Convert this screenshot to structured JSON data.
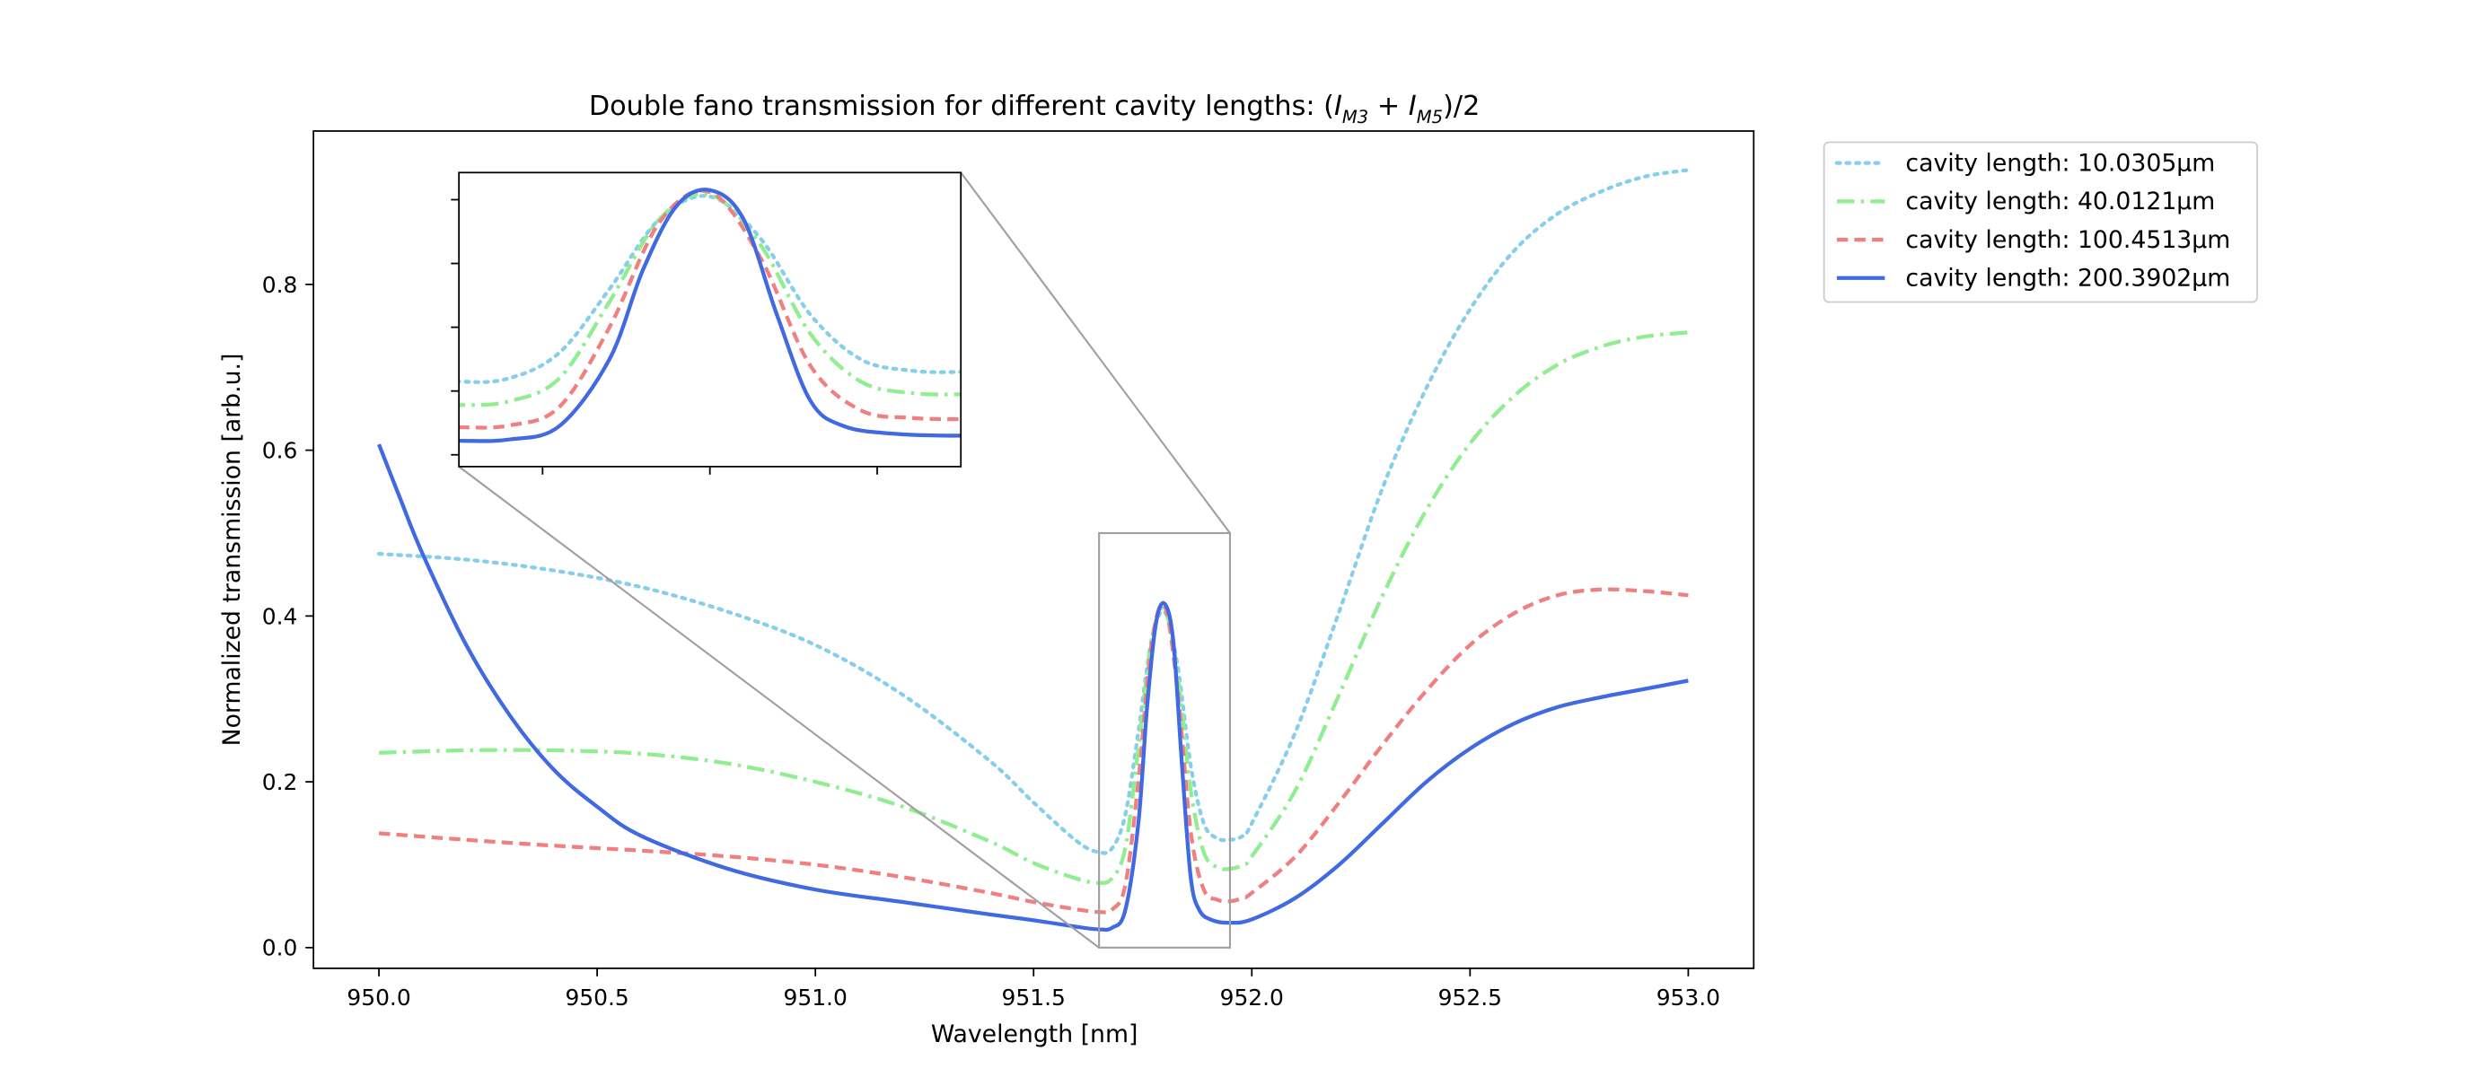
{
  "chart_data": {
    "type": "line",
    "title_main": "Double fano transmission for different cavity lengths:  (",
    "title_parts": {
      "I": "I",
      "M3": "M3",
      "plus": " + ",
      "M5": "M5",
      "tail": ")/2"
    },
    "xlabel": "Wavelength [nm]",
    "ylabel": "Normalized transmission [arb.u.]",
    "xlim": [
      949.85,
      953.15
    ],
    "ylim": [
      -0.025,
      0.985
    ],
    "xticks": [
      950.0,
      950.5,
      951.0,
      951.5,
      952.0,
      952.5,
      953.0
    ],
    "xtick_labels": [
      "950.0",
      "950.5",
      "951.0",
      "951.5",
      "952.0",
      "952.5",
      "953.0"
    ],
    "yticks": [
      0.0,
      0.2,
      0.4,
      0.6,
      0.8
    ],
    "ytick_labels": [
      "0.0",
      "0.2",
      "0.4",
      "0.6",
      "0.8"
    ],
    "legend_position": "outside upper right",
    "series": [
      {
        "name": "cavity length: 10.0305µm",
        "color": "#87CEEB",
        "dash": "dotted",
        "points": [
          [
            950.0,
            0.475
          ],
          [
            950.2,
            0.468
          ],
          [
            950.4,
            0.455
          ],
          [
            950.6,
            0.435
          ],
          [
            950.8,
            0.405
          ],
          [
            951.0,
            0.365
          ],
          [
            951.2,
            0.305
          ],
          [
            951.4,
            0.225
          ],
          [
            951.5,
            0.175
          ],
          [
            951.6,
            0.128
          ],
          [
            951.65,
            0.115
          ],
          [
            951.68,
            0.12
          ],
          [
            951.71,
            0.16
          ],
          [
            951.74,
            0.26
          ],
          [
            951.77,
            0.37
          ],
          [
            951.8,
            0.405
          ],
          [
            951.83,
            0.34
          ],
          [
            951.86,
            0.22
          ],
          [
            951.89,
            0.15
          ],
          [
            951.92,
            0.132
          ],
          [
            951.95,
            0.13
          ],
          [
            951.98,
            0.135
          ],
          [
            952.0,
            0.15
          ],
          [
            952.1,
            0.26
          ],
          [
            952.2,
            0.405
          ],
          [
            952.3,
            0.555
          ],
          [
            952.4,
            0.675
          ],
          [
            952.5,
            0.77
          ],
          [
            952.6,
            0.84
          ],
          [
            952.7,
            0.885
          ],
          [
            952.8,
            0.912
          ],
          [
            952.9,
            0.93
          ],
          [
            953.0,
            0.938
          ]
        ]
      },
      {
        "name": "cavity length: 40.0121µm",
        "color": "#90EE90",
        "dash": "dashdot",
        "points": [
          [
            950.0,
            0.235
          ],
          [
            950.2,
            0.238
          ],
          [
            950.4,
            0.238
          ],
          [
            950.6,
            0.234
          ],
          [
            950.8,
            0.222
          ],
          [
            951.0,
            0.2
          ],
          [
            951.2,
            0.17
          ],
          [
            951.4,
            0.128
          ],
          [
            951.5,
            0.102
          ],
          [
            951.6,
            0.083
          ],
          [
            951.65,
            0.078
          ],
          [
            951.68,
            0.084
          ],
          [
            951.71,
            0.12
          ],
          [
            951.74,
            0.24
          ],
          [
            951.77,
            0.37
          ],
          [
            951.8,
            0.408
          ],
          [
            951.83,
            0.33
          ],
          [
            951.86,
            0.19
          ],
          [
            951.89,
            0.115
          ],
          [
            951.92,
            0.097
          ],
          [
            951.95,
            0.095
          ],
          [
            951.98,
            0.1
          ],
          [
            952.0,
            0.11
          ],
          [
            952.1,
            0.19
          ],
          [
            952.2,
            0.305
          ],
          [
            952.3,
            0.425
          ],
          [
            952.4,
            0.528
          ],
          [
            952.5,
            0.608
          ],
          [
            952.6,
            0.665
          ],
          [
            952.7,
            0.703
          ],
          [
            952.8,
            0.725
          ],
          [
            952.9,
            0.737
          ],
          [
            953.0,
            0.742
          ]
        ]
      },
      {
        "name": "cavity length: 100.4513µm",
        "color": "#F08080",
        "dash": "dashed",
        "points": [
          [
            950.0,
            0.138
          ],
          [
            950.2,
            0.13
          ],
          [
            950.4,
            0.123
          ],
          [
            950.6,
            0.117
          ],
          [
            950.8,
            0.11
          ],
          [
            951.0,
            0.1
          ],
          [
            951.2,
            0.085
          ],
          [
            951.4,
            0.066
          ],
          [
            951.5,
            0.055
          ],
          [
            951.6,
            0.046
          ],
          [
            951.65,
            0.043
          ],
          [
            951.68,
            0.046
          ],
          [
            951.71,
            0.075
          ],
          [
            951.74,
            0.2
          ],
          [
            951.77,
            0.365
          ],
          [
            951.8,
            0.412
          ],
          [
            951.83,
            0.31
          ],
          [
            951.86,
            0.14
          ],
          [
            951.89,
            0.07
          ],
          [
            951.92,
            0.058
          ],
          [
            951.95,
            0.056
          ],
          [
            951.98,
            0.06
          ],
          [
            952.0,
            0.066
          ],
          [
            952.1,
            0.11
          ],
          [
            952.2,
            0.175
          ],
          [
            952.3,
            0.245
          ],
          [
            952.4,
            0.31
          ],
          [
            952.5,
            0.365
          ],
          [
            952.6,
            0.403
          ],
          [
            952.7,
            0.425
          ],
          [
            952.8,
            0.432
          ],
          [
            952.9,
            0.43
          ],
          [
            953.0,
            0.425
          ]
        ]
      },
      {
        "name": "cavity length: 200.3902µm",
        "color": "#4169E1",
        "dash": "solid",
        "points": [
          [
            950.0,
            0.607
          ],
          [
            950.05,
            0.54
          ],
          [
            950.1,
            0.475
          ],
          [
            950.2,
            0.365
          ],
          [
            950.3,
            0.28
          ],
          [
            950.4,
            0.215
          ],
          [
            950.5,
            0.17
          ],
          [
            950.6,
            0.135
          ],
          [
            950.8,
            0.095
          ],
          [
            951.0,
            0.07
          ],
          [
            951.2,
            0.055
          ],
          [
            951.4,
            0.04
          ],
          [
            951.5,
            0.033
          ],
          [
            951.6,
            0.025
          ],
          [
            951.65,
            0.022
          ],
          [
            951.68,
            0.024
          ],
          [
            951.71,
            0.045
          ],
          [
            951.74,
            0.15
          ],
          [
            951.76,
            0.29
          ],
          [
            951.78,
            0.39
          ],
          [
            951.8,
            0.415
          ],
          [
            951.82,
            0.37
          ],
          [
            951.84,
            0.22
          ],
          [
            951.86,
            0.085
          ],
          [
            951.88,
            0.045
          ],
          [
            951.91,
            0.033
          ],
          [
            951.95,
            0.03
          ],
          [
            952.0,
            0.034
          ],
          [
            952.1,
            0.06
          ],
          [
            952.2,
            0.1
          ],
          [
            952.3,
            0.15
          ],
          [
            952.4,
            0.2
          ],
          [
            952.5,
            0.24
          ],
          [
            952.6,
            0.27
          ],
          [
            952.7,
            0.29
          ],
          [
            952.8,
            0.302
          ],
          [
            952.9,
            0.312
          ],
          [
            953.0,
            0.322
          ]
        ]
      }
    ],
    "zoom_box": {
      "x": [
        951.65,
        951.95
      ],
      "y": [
        0.0,
        0.5
      ]
    },
    "inset": {
      "xlim": [
        951.65,
        951.95
      ],
      "ylim": [
        -0.0185,
        0.4425
      ],
      "xticks": [
        951.7,
        951.8,
        951.9
      ],
      "yticks": [
        0.0,
        0.1,
        0.2,
        0.3,
        0.4
      ]
    }
  }
}
